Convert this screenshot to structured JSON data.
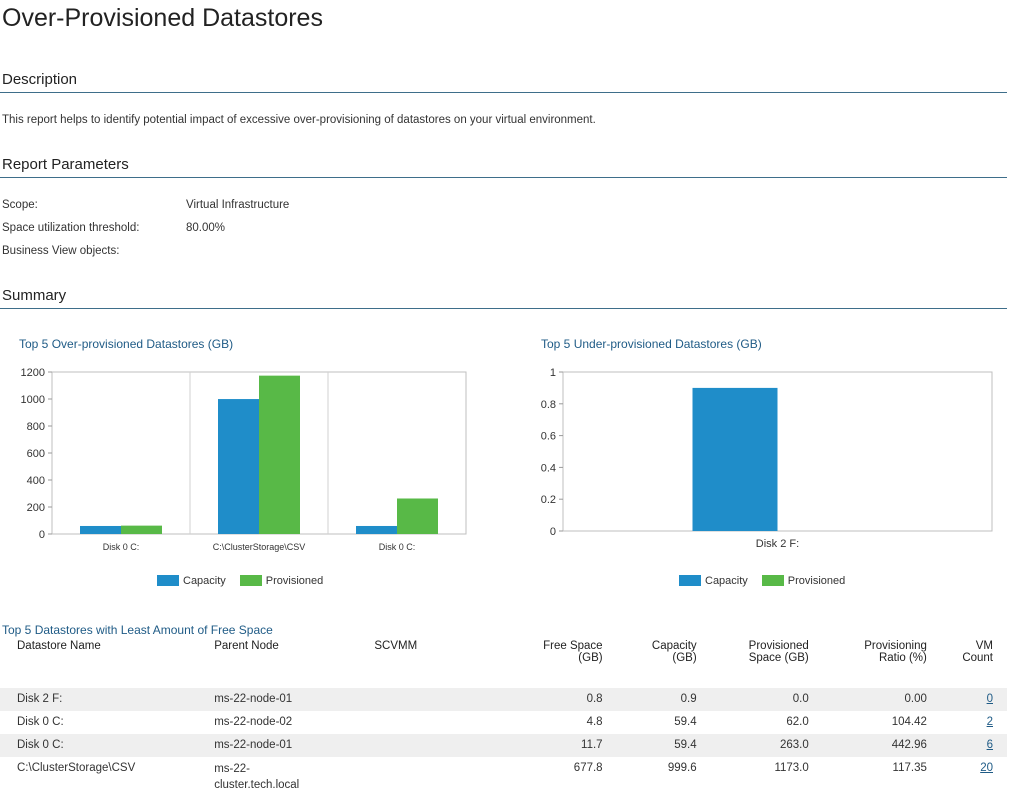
{
  "page": {
    "title": "Over-Provisioned Datastores"
  },
  "description": {
    "heading": "Description",
    "text": "This report helps to identify potential impact of excessive over-provisioning of datastores on your virtual environment."
  },
  "parameters": {
    "heading": "Report Parameters",
    "rows": [
      {
        "label": "Scope:",
        "value": "Virtual Infrastructure"
      },
      {
        "label": "Space utilization threshold:",
        "value": "80.00%"
      },
      {
        "label": "Business View objects:",
        "value": ""
      }
    ]
  },
  "summary": {
    "heading": "Summary"
  },
  "colors": {
    "capacity": "#1f8dc9",
    "provisioned": "#58b947",
    "accent": "#1f5b86",
    "rule": "#3e6e8a"
  },
  "chart_data": [
    {
      "type": "bar",
      "title": "Top 5 Over-provisioned Datastores (GB)",
      "categories": [
        "Disk 0  C:",
        "C:\\ClusterStorage\\CSV",
        "Disk 0  C:"
      ],
      "series": [
        {
          "name": "Capacity",
          "values": [
            59.4,
            999.6,
            59.4
          ]
        },
        {
          "name": "Provisioned",
          "values": [
            62.0,
            1173.0,
            263.0
          ]
        }
      ],
      "ylim": [
        0,
        1200
      ],
      "yticks": [
        "0",
        "200",
        "400",
        "600",
        "800",
        "1000",
        "1200"
      ],
      "legend": "bottom"
    },
    {
      "type": "bar",
      "title": "Top 5 Under-provisioned Datastores (GB)",
      "categories": [
        "Disk 2  F:"
      ],
      "series": [
        {
          "name": "Capacity",
          "values": [
            0.9
          ]
        },
        {
          "name": "Provisioned",
          "values": [
            0.0
          ]
        }
      ],
      "ylim": [
        0,
        1
      ],
      "yticks": [
        "0",
        "0.2",
        "0.4",
        "0.6",
        "0.8",
        "1"
      ],
      "legend": "bottom"
    }
  ],
  "table": {
    "title": "Top 5 Datastores with Least Amount of Free Space",
    "headers": {
      "name": "Datastore Name",
      "parent": "Parent Node",
      "scvmm": "SCVMM",
      "free": "Free Space (GB)",
      "capacity": "Capacity (GB)",
      "provisioned": "Provisioned Space (GB)",
      "ratio": "Provisioning Ratio (%)",
      "vm": "VM Count"
    },
    "rows": [
      {
        "name": "Disk 2  F:",
        "parent": "ms-22-node-01",
        "scvmm": "",
        "free": "0.8",
        "capacity": "0.9",
        "provisioned": "0.0",
        "ratio": "0.00",
        "vm": "0"
      },
      {
        "name": "Disk 0  C:",
        "parent": "ms-22-node-02",
        "scvmm": "",
        "free": "4.8",
        "capacity": "59.4",
        "provisioned": "62.0",
        "ratio": "104.42",
        "vm": "2"
      },
      {
        "name": "Disk 0  C:",
        "parent": "ms-22-node-01",
        "scvmm": "",
        "free": "11.7",
        "capacity": "59.4",
        "provisioned": "263.0",
        "ratio": "442.96",
        "vm": "6"
      },
      {
        "name": "C:\\ClusterStorage\\CSV",
        "parent": "ms-22-cluster.tech.local",
        "scvmm": "",
        "free": "677.8",
        "capacity": "999.6",
        "provisioned": "1173.0",
        "ratio": "117.35",
        "vm": "20"
      }
    ]
  }
}
